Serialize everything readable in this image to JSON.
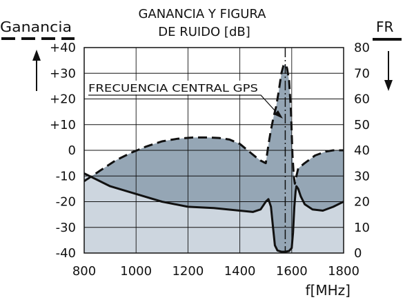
{
  "chart_data": {
    "type": "area",
    "title": [
      "GANANCIA Y FIGURA",
      "DE RUIDO [dB]"
    ],
    "xlabel": "f[MHz]",
    "ylabel_left": "Ganancia",
    "ylabel_right": "FR",
    "xlim": [
      800,
      1800
    ],
    "ylim_left": [
      -40,
      40
    ],
    "ylim_right": [
      0,
      80
    ],
    "x_ticks": [
      "800",
      "1000",
      "1200",
      "1400",
      "1600",
      "1800"
    ],
    "y_ticks_left": [
      "+40",
      "+30",
      "+20",
      "+10",
      "0",
      "-10",
      "-20",
      "-30",
      "-40"
    ],
    "y_ticks_right": [
      "80",
      "70",
      "60",
      "50",
      "40",
      "30",
      "20",
      "10",
      "0"
    ],
    "grid": true,
    "series": [
      {
        "name": "Ganancia",
        "axis": "left",
        "style": "dashed",
        "fill": "#95a6b5",
        "x": [
          800,
          860,
          920,
          980,
          1040,
          1100,
          1160,
          1220,
          1280,
          1320,
          1360,
          1400,
          1430,
          1460,
          1480,
          1500,
          1510,
          1520,
          1530,
          1540,
          1550,
          1560,
          1568,
          1575,
          1582,
          1590,
          1597,
          1603,
          1608,
          1612,
          1618,
          1625,
          1650,
          1690,
          1730,
          1760,
          1780,
          1800
        ],
        "y": [
          -12,
          -8,
          -4,
          -1,
          1.5,
          3.5,
          4.5,
          5,
          5,
          4.8,
          4.2,
          2.5,
          0,
          -2.5,
          -4,
          -5,
          2,
          8,
          13,
          17,
          23,
          30,
          33,
          33.5,
          32,
          27,
          15,
          -2,
          -10,
          -13,
          -10,
          -7,
          -5,
          -2,
          -0.5,
          0,
          0,
          0
        ]
      },
      {
        "name": "FR",
        "axis": "right",
        "style": "solid",
        "fill": "#cdd6df",
        "x": [
          800,
          900,
          1000,
          1100,
          1200,
          1300,
          1400,
          1450,
          1480,
          1500,
          1510,
          1520,
          1528,
          1535,
          1545,
          1560,
          1575,
          1590,
          1600,
          1605,
          1610,
          1615,
          1618,
          1625,
          1635,
          1650,
          1680,
          1720,
          1760,
          1800
        ],
        "y": [
          31,
          26,
          23,
          20,
          18,
          17.5,
          16.5,
          16,
          17,
          20,
          21,
          18,
          10,
          3,
          1,
          0.5,
          0.5,
          0.8,
          2,
          8,
          18,
          24,
          26,
          25,
          22,
          19,
          17,
          16.5,
          18,
          20
        ]
      }
    ],
    "annotations": [
      {
        "text": "FRECUENCIA CENTRAL GPS",
        "x": 1575
      }
    ]
  }
}
